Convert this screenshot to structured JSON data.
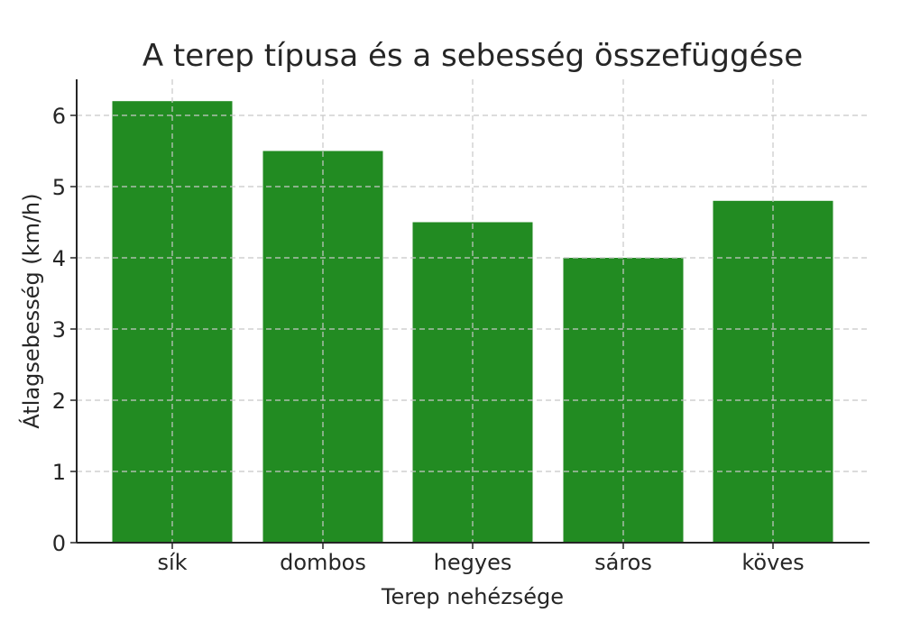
{
  "chart_data": {
    "type": "bar",
    "title": "A terep típusa és a sebesség összefüggése",
    "xlabel": "Terep nehézsége",
    "ylabel": "Átlagsebesség (km/h)",
    "categories": [
      "sík",
      "dombos",
      "hegyes",
      "sáros",
      "köves"
    ],
    "values": [
      6.2,
      5.5,
      4.5,
      4.0,
      4.8
    ],
    "ylim": [
      0,
      6.5
    ],
    "yticks": [
      0,
      1,
      2,
      3,
      4,
      5,
      6
    ],
    "grid": true,
    "bar_color": "#228B22"
  }
}
